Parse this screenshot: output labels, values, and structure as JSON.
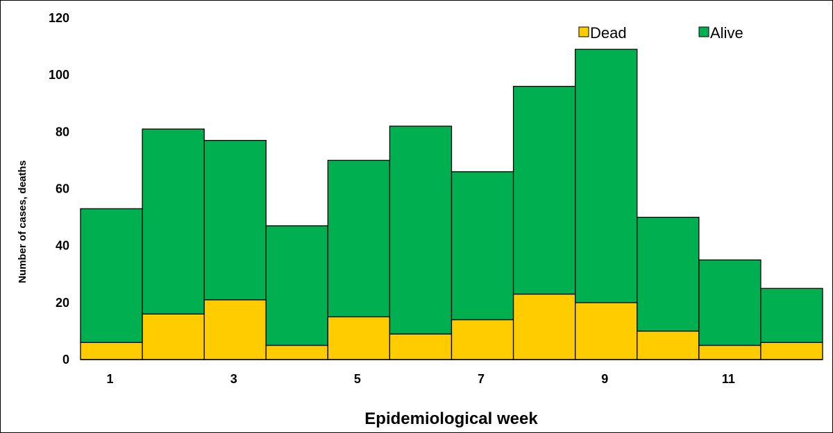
{
  "chart_data": {
    "type": "bar",
    "stacked": true,
    "categories": [
      "1",
      "2",
      "3",
      "4",
      "5",
      "6",
      "7",
      "8",
      "9",
      "10",
      "11",
      "12"
    ],
    "x_tick_labels": [
      "1",
      "",
      "3",
      "",
      "5",
      "",
      "7",
      "",
      "9",
      "",
      "11",
      ""
    ],
    "series": [
      {
        "name": "Dead",
        "color": "#ffcc00",
        "values": [
          6,
          16,
          21,
          5,
          15,
          9,
          14,
          23,
          20,
          10,
          5,
          6
        ]
      },
      {
        "name": "Alive",
        "color": "#00b050",
        "values": [
          47,
          65,
          56,
          42,
          55,
          73,
          52,
          73,
          89,
          40,
          30,
          19
        ]
      }
    ],
    "totals": [
      53,
      81,
      77,
      47,
      70,
      82,
      66,
      96,
      109,
      50,
      35,
      25
    ],
    "xlabel": "Epidemiological week",
    "ylabel": "Number of cases, deaths",
    "ylim": [
      0,
      120
    ],
    "yticks": [
      "0",
      "20",
      "40",
      "60",
      "80",
      "100",
      "120"
    ],
    "grid": false,
    "legend_position": "top-right"
  }
}
